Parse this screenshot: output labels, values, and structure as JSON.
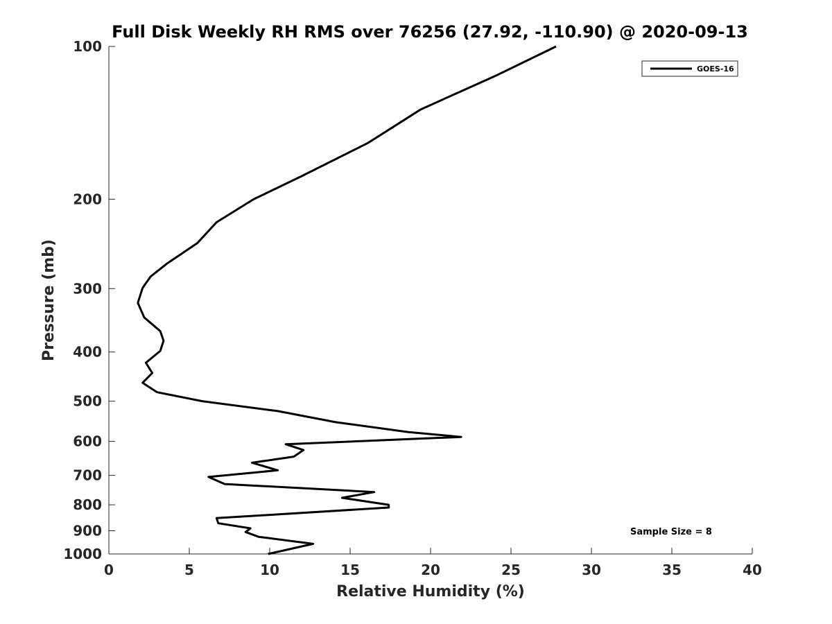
{
  "chart_data": {
    "type": "line",
    "title": "Full Disk Weekly RH RMS over 76256 (27.92, -110.90) @ 2020-09-13",
    "xlabel": "Relative Humidity (%)",
    "ylabel": "Pressure (mb)",
    "xlim": [
      0,
      40
    ],
    "ylim": [
      100,
      1000
    ],
    "yscale": "log",
    "y_reversed": true,
    "grid": false,
    "legend_position": "top-right",
    "x_ticks": [
      0,
      5,
      10,
      15,
      20,
      25,
      30,
      35,
      40
    ],
    "x_tick_labels": [
      "0",
      "5",
      "10",
      "15",
      "20",
      "25",
      "30",
      "35",
      "40"
    ],
    "y_ticks": [
      100,
      200,
      300,
      400,
      500,
      600,
      700,
      800,
      900,
      1000
    ],
    "y_tick_labels": [
      "100",
      "200",
      "300",
      "400",
      "500",
      "600",
      "700",
      "800",
      "900",
      "1000"
    ],
    "series": [
      {
        "name": "GOES-16",
        "color": "#000000",
        "x": [
          27.8,
          24.1,
          19.4,
          16.1,
          12.0,
          9.0,
          6.7,
          5.5,
          3.6,
          2.6,
          2.1,
          1.8,
          2.2,
          3.2,
          3.4,
          3.2,
          2.3,
          2.7,
          2.1,
          3.0,
          5.8,
          10.5,
          14.1,
          18.6,
          21.9,
          11.0,
          12.1,
          11.5,
          8.9,
          10.5,
          6.2,
          7.2,
          16.5,
          14.5,
          17.4,
          17.4,
          6.7,
          6.8,
          8.8,
          8.5,
          9.3,
          12.7,
          9.9
        ],
        "y": [
          100,
          114,
          133,
          155,
          180,
          200,
          222,
          244,
          268,
          284,
          299,
          320,
          342,
          364,
          380,
          398,
          420,
          440,
          460,
          480,
          500,
          523,
          550,
          575,
          588,
          608,
          624,
          643,
          661,
          684,
          705,
          728,
          755,
          775,
          800,
          810,
          850,
          870,
          890,
          905,
          925,
          955,
          1000
        ]
      }
    ],
    "annotations": [
      "Sample Size = 8"
    ]
  }
}
